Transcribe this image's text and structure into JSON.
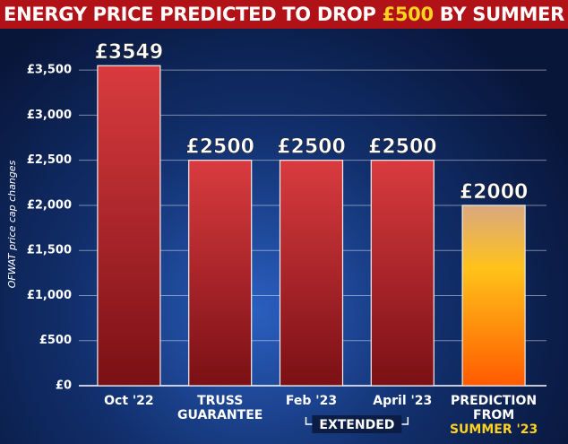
{
  "chart_data": {
    "type": "bar",
    "title_parts": [
      "ENERGY PRICE PREDICTED TO DROP ",
      "£500",
      " BY SUMMER"
    ],
    "y_label": "OFWAT price cap changes",
    "categories": [
      [
        "Oct '22"
      ],
      [
        "TRUSS",
        "GUARANTEE"
      ],
      [
        "Feb '23"
      ],
      [
        "April '23"
      ],
      [
        "PREDICTION",
        "FROM",
        "SUMMER '23"
      ]
    ],
    "values": [
      3549,
      2500,
      2500,
      2500,
      2000
    ],
    "value_labels": [
      "£3549",
      "£2500",
      "£2500",
      "£2500",
      "£2000"
    ],
    "colors": [
      "#d93b3f",
      "#d93b3f",
      "#d93b3f",
      "#d93b3f",
      "#ffc21a"
    ],
    "annotation": "EXTENDED",
    "ylim": [
      0,
      3800
    ],
    "yticks": [
      {
        "value": 0,
        "label": "£0"
      },
      {
        "value": 500,
        "label": "£500"
      },
      {
        "value": 1000,
        "label": "£1,000"
      },
      {
        "value": 1500,
        "label": "£1,500"
      },
      {
        "value": 2000,
        "label": "£2,000"
      },
      {
        "value": 2500,
        "label": "£2,500"
      },
      {
        "value": 3000,
        "label": "£3,000"
      },
      {
        "value": 3500,
        "label": "£3,500"
      }
    ],
    "grid": true
  }
}
